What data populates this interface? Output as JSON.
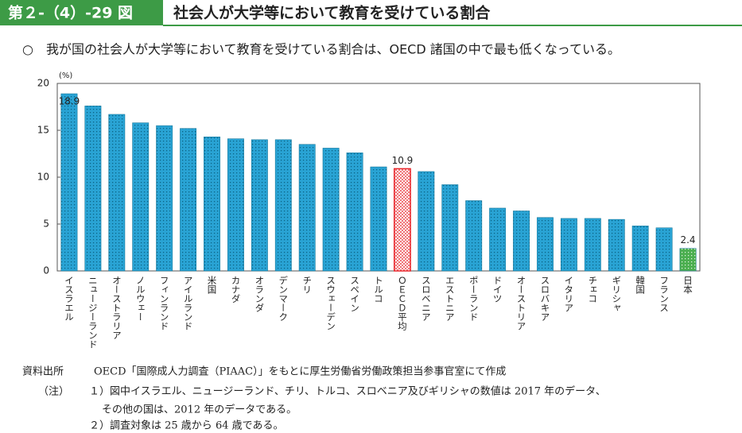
{
  "header": {
    "figure_no": "第２-（4）-29 図",
    "title": "社会人が大学等において教育を受けている割合"
  },
  "subtitle": "○　我が国の社会人が大学等において教育を受けている割合は、OECD 諸国の中で最も低くなっている。",
  "chart_data": {
    "type": "bar",
    "y_unit": "(%)",
    "categories": [
      "イスラエル",
      "ニュージーランド",
      "オーストラリア",
      "ノルウェー",
      "フィンランド",
      "アイルランド",
      "米国",
      "カナダ",
      "オランダ",
      "デンマーク",
      "チリ",
      "スウェーデン",
      "スペイン",
      "トルコ",
      "ＯＥＣＤ平均",
      "スロベニア",
      "エストニア",
      "ポーランド",
      "ドイツ",
      "オーストリア",
      "スロバキア",
      "イタリア",
      "チェコ",
      "ギリシャ",
      "韓国",
      "フランス",
      "日本"
    ],
    "values": [
      18.9,
      17.6,
      16.7,
      15.8,
      15.5,
      15.2,
      14.3,
      14.1,
      14.0,
      14.0,
      13.5,
      13.1,
      12.6,
      11.1,
      10.9,
      10.6,
      9.2,
      7.5,
      6.7,
      6.4,
      5.7,
      5.6,
      5.6,
      5.5,
      4.8,
      4.6,
      2.4
    ],
    "value_labels": [
      "18.9",
      null,
      null,
      null,
      null,
      null,
      null,
      null,
      null,
      null,
      null,
      null,
      null,
      null,
      "10.9",
      null,
      null,
      null,
      null,
      null,
      null,
      null,
      null,
      null,
      null,
      null,
      "2.4"
    ],
    "colors": [
      "#29a3d4",
      "#29a3d4",
      "#29a3d4",
      "#29a3d4",
      "#29a3d4",
      "#29a3d4",
      "#29a3d4",
      "#29a3d4",
      "#29a3d4",
      "#29a3d4",
      "#29a3d4",
      "#29a3d4",
      "#29a3d4",
      "#29a3d4",
      "#e8262b",
      "#29a3d4",
      "#29a3d4",
      "#29a3d4",
      "#29a3d4",
      "#29a3d4",
      "#29a3d4",
      "#29a3d4",
      "#29a3d4",
      "#29a3d4",
      "#29a3d4",
      "#29a3d4",
      "#4caf50"
    ],
    "ylim": [
      0,
      20
    ],
    "yticks": [
      0,
      5,
      10,
      15,
      20
    ],
    "grid": false
  },
  "footer": {
    "source_label": "資料出所",
    "source": "OECD「国際成人力調査（PIAAC）」をもとに厚生労働省労働政策担当参事官室にて作成",
    "notes_label": "（注）",
    "notes": [
      "１）図中イスラエル、ニュージーランド、チリ、トルコ、スロベニア及びギリシャの数値は 2017 年のデータ、",
      "その他の国は、2012 年のデータである。",
      "２）調査対象は 25 歳から 64 歳である。"
    ]
  }
}
